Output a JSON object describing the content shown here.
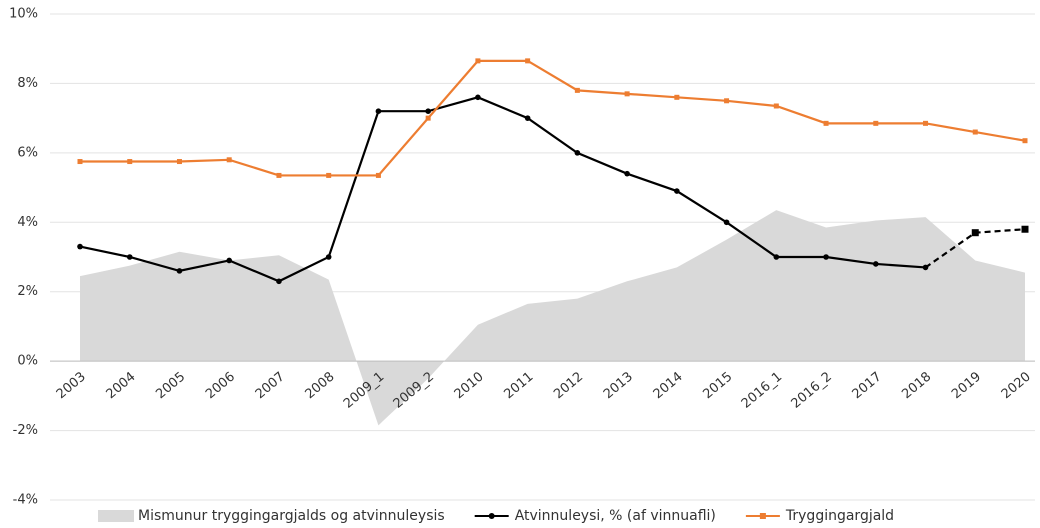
{
  "chart_data": {
    "type": "line",
    "categories": [
      "2003",
      "2004",
      "2005",
      "2006",
      "2007",
      "2008",
      "2009_1",
      "2009_2",
      "2010",
      "2011",
      "2012",
      "2013",
      "2014",
      "2015",
      "2016_1",
      "2016_2",
      "2017",
      "2018",
      "2019",
      "2020"
    ],
    "ylim": [
      -4,
      10
    ],
    "yticks": [
      {
        "value": -4,
        "label": "-4%"
      },
      {
        "value": -2,
        "label": "-2%"
      },
      {
        "value": 0,
        "label": "0%"
      },
      {
        "value": 2,
        "label": "2%"
      },
      {
        "value": 4,
        "label": "4%"
      },
      {
        "value": 6,
        "label": "6%"
      },
      {
        "value": 8,
        "label": "8%"
      },
      {
        "value": 10,
        "label": "10%"
      }
    ],
    "grid": true,
    "legend": "bottom",
    "series": [
      {
        "name": "Mismunur tryggingargjalds og atvinnuleysis",
        "type": "area",
        "color": "#d9d9d9",
        "values": [
          2.45,
          2.75,
          3.15,
          2.9,
          3.05,
          2.35,
          -1.85,
          -0.5,
          1.05,
          1.65,
          1.8,
          2.3,
          2.7,
          3.5,
          4.35,
          3.85,
          4.05,
          4.15,
          2.9,
          2.55
        ]
      },
      {
        "name": "Atvinnuleysi, % (af vinnuafli)",
        "type": "line",
        "color": "#000000",
        "marker": "circle",
        "values": [
          3.3,
          3.0,
          2.6,
          2.9,
          2.3,
          3.0,
          7.2,
          7.2,
          7.6,
          7.0,
          6.0,
          5.4,
          4.9,
          4.0,
          3.0,
          3.0,
          2.8,
          2.7,
          3.7,
          3.8
        ],
        "linestyle": [
          "solid",
          "solid",
          "solid",
          "solid",
          "solid",
          "solid",
          "solid",
          "solid",
          "solid",
          "solid",
          "solid",
          "solid",
          "solid",
          "solid",
          "solid",
          "solid",
          "solid",
          "solid",
          "dashed",
          "dashed"
        ]
      },
      {
        "name": "Tryggingargjald",
        "type": "line",
        "color": "#ed7d31",
        "marker": "square",
        "values": [
          5.75,
          5.75,
          5.75,
          5.8,
          5.35,
          5.35,
          5.35,
          7.0,
          8.65,
          8.65,
          7.8,
          7.7,
          7.6,
          7.5,
          7.35,
          6.85,
          6.85,
          6.85,
          6.6,
          6.35
        ]
      }
    ]
  }
}
